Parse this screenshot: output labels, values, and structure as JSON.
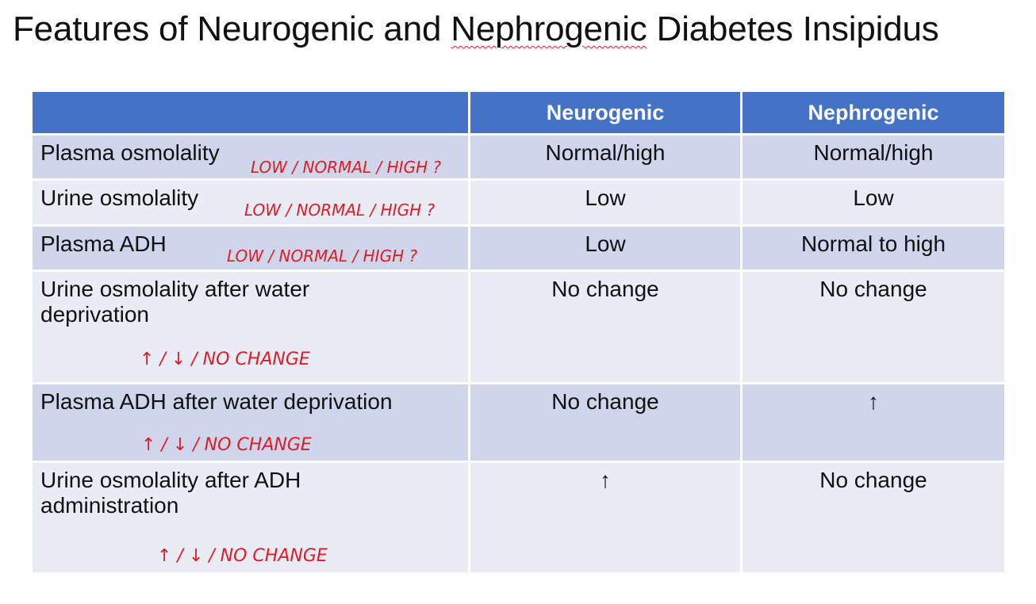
{
  "title_prefix": "Features of Neurogenic and ",
  "title_flagged": "Nephrogenic",
  "title_suffix": " Diabetes Insipidus",
  "table": {
    "headers": [
      "",
      "Neurogenic",
      "Nephrogenic"
    ],
    "rows": [
      {
        "label": "Plasma osmolality",
        "neurogenic": "Normal/high",
        "nephrogenic": "Normal/high"
      },
      {
        "label": "Urine osmolality",
        "neurogenic": "Low",
        "nephrogenic": "Low"
      },
      {
        "label": "Plasma ADH",
        "neurogenic": "Low",
        "nephrogenic": "Normal to high"
      },
      {
        "label": "Urine osmolality after water deprivation",
        "neurogenic": "No change",
        "nephrogenic": "No change"
      },
      {
        "label": "Plasma ADH after water deprivation",
        "neurogenic": "No change",
        "nephrogenic": "↑"
      },
      {
        "label": "Urine osmolality after ADH administration",
        "neurogenic": "↑",
        "nephrogenic": "No change"
      }
    ]
  },
  "handwriting": {
    "level_question": "LOW / NORMAL / HIGH ?",
    "change_options": "↑ / ↓ / NO CHANGE"
  },
  "colors": {
    "header": "#4472c4",
    "row_dark": "#cfd5ea",
    "row_light": "#e9ebf5",
    "ink": "#e01b24"
  }
}
